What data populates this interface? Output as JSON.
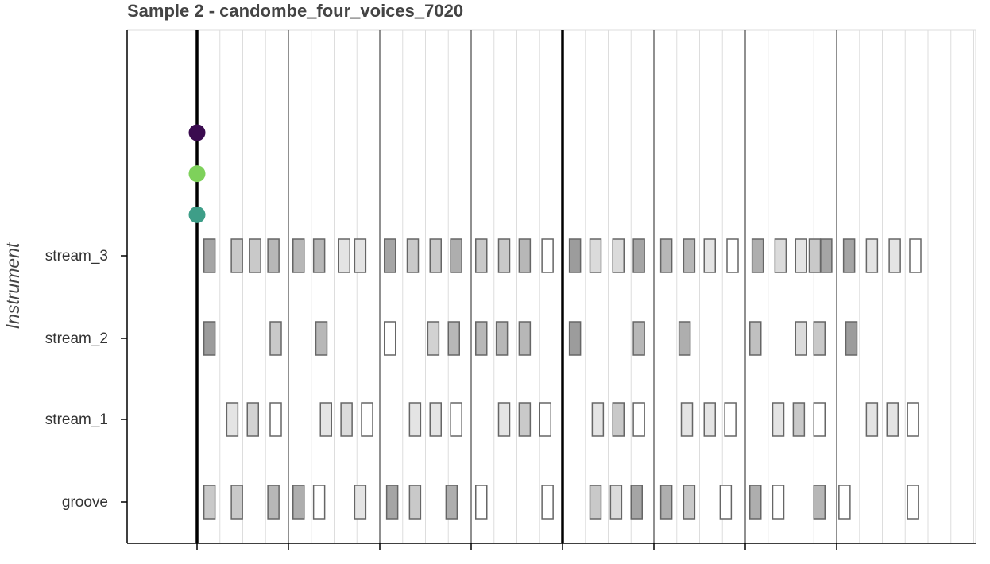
{
  "chart_data": {
    "type": "scatter",
    "title": "Sample 2 - candombe_four_voices_7020",
    "ylabel": "Instrument",
    "xlabel": "",
    "instruments": [
      "stream_3",
      "stream_2",
      "stream_1",
      "groove"
    ],
    "grid": true,
    "steps_per_beat": 4,
    "xlim": [
      -0.3,
      34.0
    ],
    "bar_lines": [
      0,
      16
    ],
    "beat_lines": [
      0,
      4,
      8,
      12,
      16,
      20,
      24,
      28
    ],
    "x_tick_positions": [
      0,
      4,
      8,
      12,
      16,
      20,
      24,
      28
    ],
    "onset_markers": [
      {
        "instrument_row": 0.9,
        "x": 0,
        "color": "#3a0b4f"
      },
      {
        "instrument_row": 0.6,
        "x": 0,
        "color": "#7ed15b"
      },
      {
        "instrument_row": 0.3,
        "x": 0,
        "color": "#3e9e88"
      }
    ],
    "series": [
      {
        "name": "stream_3",
        "notes": [
          {
            "x": 0.3,
            "intensity": 0.5
          },
          {
            "x": 1.5,
            "intensity": 0.3
          },
          {
            "x": 2.3,
            "intensity": 0.3
          },
          {
            "x": 3.1,
            "intensity": 0.4
          },
          {
            "x": 4.2,
            "intensity": 0.4
          },
          {
            "x": 5.1,
            "intensity": 0.4
          },
          {
            "x": 6.2,
            "intensity": 0.15
          },
          {
            "x": 6.9,
            "intensity": 0.15
          },
          {
            "x": 8.2,
            "intensity": 0.5
          },
          {
            "x": 9.2,
            "intensity": 0.3
          },
          {
            "x": 10.2,
            "intensity": 0.3
          },
          {
            "x": 11.1,
            "intensity": 0.45
          },
          {
            "x": 12.2,
            "intensity": 0.3
          },
          {
            "x": 13.2,
            "intensity": 0.3
          },
          {
            "x": 14.1,
            "intensity": 0.4
          },
          {
            "x": 15.1,
            "intensity": 0.0
          },
          {
            "x": 16.3,
            "intensity": 0.55
          },
          {
            "x": 17.2,
            "intensity": 0.2
          },
          {
            "x": 18.2,
            "intensity": 0.2
          },
          {
            "x": 19.1,
            "intensity": 0.5
          },
          {
            "x": 20.3,
            "intensity": 0.4
          },
          {
            "x": 21.3,
            "intensity": 0.4
          },
          {
            "x": 22.2,
            "intensity": 0.15
          },
          {
            "x": 23.2,
            "intensity": 0.0
          },
          {
            "x": 24.3,
            "intensity": 0.45
          },
          {
            "x": 25.3,
            "intensity": 0.2
          },
          {
            "x": 26.2,
            "intensity": 0.15
          },
          {
            "x": 26.8,
            "intensity": 0.3
          },
          {
            "x": 27.3,
            "intensity": 0.5
          },
          {
            "x": 28.3,
            "intensity": 0.5
          },
          {
            "x": 29.3,
            "intensity": 0.15
          },
          {
            "x": 30.3,
            "intensity": 0.15
          },
          {
            "x": 31.2,
            "intensity": 0.0
          }
        ]
      },
      {
        "name": "stream_2",
        "notes": [
          {
            "x": 0.3,
            "intensity": 0.55
          },
          {
            "x": 3.2,
            "intensity": 0.3
          },
          {
            "x": 5.2,
            "intensity": 0.4
          },
          {
            "x": 8.2,
            "intensity": 0.0
          },
          {
            "x": 10.1,
            "intensity": 0.25
          },
          {
            "x": 11.0,
            "intensity": 0.4
          },
          {
            "x": 12.2,
            "intensity": 0.4
          },
          {
            "x": 13.1,
            "intensity": 0.4
          },
          {
            "x": 14.1,
            "intensity": 0.4
          },
          {
            "x": 16.3,
            "intensity": 0.55
          },
          {
            "x": 19.1,
            "intensity": 0.4
          },
          {
            "x": 21.1,
            "intensity": 0.45
          },
          {
            "x": 24.2,
            "intensity": 0.35
          },
          {
            "x": 26.2,
            "intensity": 0.2
          },
          {
            "x": 27.0,
            "intensity": 0.3
          },
          {
            "x": 28.4,
            "intensity": 0.55
          }
        ]
      },
      {
        "name": "stream_1",
        "notes": [
          {
            "x": 1.3,
            "intensity": 0.15
          },
          {
            "x": 2.2,
            "intensity": 0.25
          },
          {
            "x": 3.2,
            "intensity": 0.0
          },
          {
            "x": 5.4,
            "intensity": 0.15
          },
          {
            "x": 6.3,
            "intensity": 0.2
          },
          {
            "x": 7.2,
            "intensity": 0.0
          },
          {
            "x": 9.3,
            "intensity": 0.15
          },
          {
            "x": 10.2,
            "intensity": 0.15
          },
          {
            "x": 11.1,
            "intensity": 0.0
          },
          {
            "x": 13.2,
            "intensity": 0.15
          },
          {
            "x": 14.1,
            "intensity": 0.3
          },
          {
            "x": 15.0,
            "intensity": 0.0
          },
          {
            "x": 17.3,
            "intensity": 0.15
          },
          {
            "x": 18.2,
            "intensity": 0.3
          },
          {
            "x": 19.1,
            "intensity": 0.0
          },
          {
            "x": 21.2,
            "intensity": 0.15
          },
          {
            "x": 22.2,
            "intensity": 0.15
          },
          {
            "x": 23.1,
            "intensity": 0.0
          },
          {
            "x": 25.2,
            "intensity": 0.15
          },
          {
            "x": 26.1,
            "intensity": 0.3
          },
          {
            "x": 27.0,
            "intensity": 0.0
          },
          {
            "x": 29.3,
            "intensity": 0.15
          },
          {
            "x": 30.2,
            "intensity": 0.15
          },
          {
            "x": 31.1,
            "intensity": 0.0
          }
        ]
      },
      {
        "name": "groove",
        "notes": [
          {
            "x": 0.3,
            "intensity": 0.3
          },
          {
            "x": 1.5,
            "intensity": 0.3
          },
          {
            "x": 3.1,
            "intensity": 0.4
          },
          {
            "x": 4.2,
            "intensity": 0.45
          },
          {
            "x": 5.1,
            "intensity": 0.0
          },
          {
            "x": 6.9,
            "intensity": 0.15
          },
          {
            "x": 8.3,
            "intensity": 0.5
          },
          {
            "x": 9.3,
            "intensity": 0.3
          },
          {
            "x": 10.9,
            "intensity": 0.45
          },
          {
            "x": 12.2,
            "intensity": 0.0
          },
          {
            "x": 15.1,
            "intensity": 0.0
          },
          {
            "x": 17.2,
            "intensity": 0.3
          },
          {
            "x": 18.1,
            "intensity": 0.2
          },
          {
            "x": 19.0,
            "intensity": 0.5
          },
          {
            "x": 20.3,
            "intensity": 0.45
          },
          {
            "x": 21.3,
            "intensity": 0.3
          },
          {
            "x": 22.9,
            "intensity": 0.0
          },
          {
            "x": 24.2,
            "intensity": 0.45
          },
          {
            "x": 25.2,
            "intensity": 0.0
          },
          {
            "x": 27.0,
            "intensity": 0.4
          },
          {
            "x": 28.1,
            "intensity": 0.0
          },
          {
            "x": 31.1,
            "intensity": 0.0
          }
        ]
      }
    ]
  }
}
